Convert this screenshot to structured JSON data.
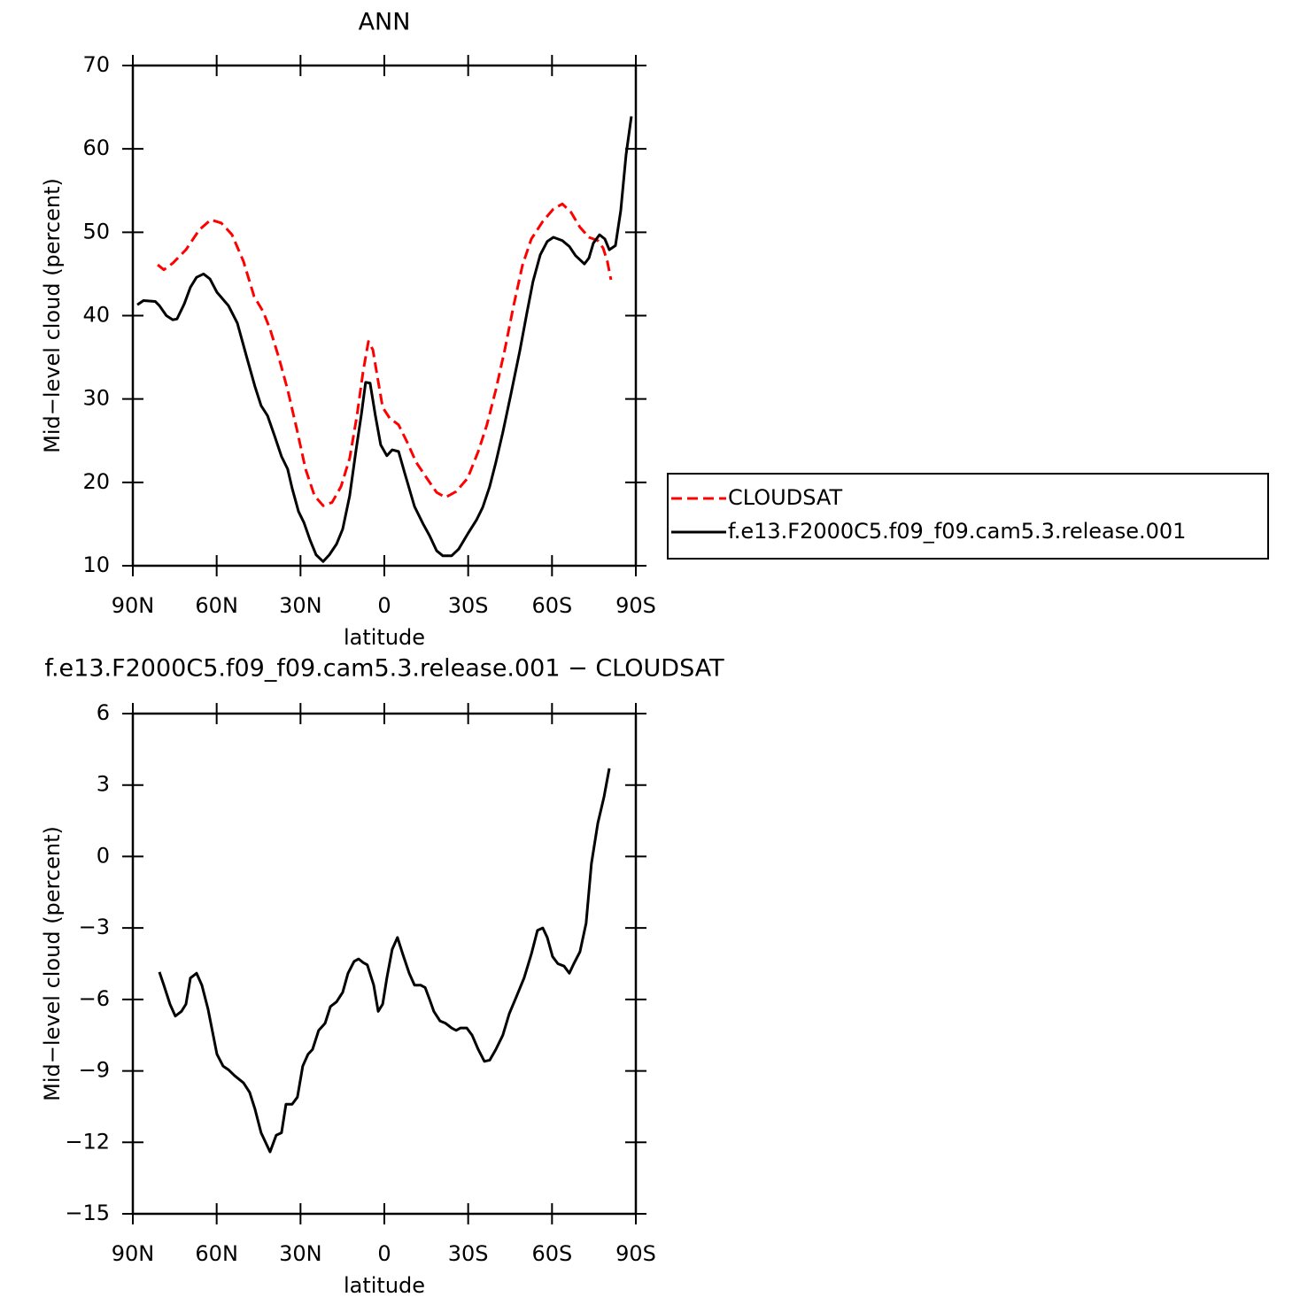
{
  "chart_data": [
    {
      "type": "line",
      "title": "ANN",
      "xlabel": "latitude",
      "ylabel": "Mid−level cloud (percent)",
      "xlim": [
        90,
        -90
      ],
      "xticks": [
        {
          "value": 90,
          "label": "90N"
        },
        {
          "value": 60,
          "label": "60N"
        },
        {
          "value": 30,
          "label": "30N"
        },
        0,
        {
          "value": -30,
          "label": "30S"
        },
        {
          "value": -60,
          "label": "60S"
        },
        {
          "value": -90,
          "label": "90S"
        }
      ],
      "ylim": [
        10,
        70
      ],
      "yticks": [
        10,
        20,
        30,
        40,
        50,
        60,
        70
      ],
      "legend": "outside-right",
      "series": [
        {
          "name": "CLOUDSAT",
          "color": "#ff0000",
          "line_style": "dashed",
          "x": [
            81.1,
            78.9,
            75.7,
            71,
            66.2,
            62.1,
            58.3,
            54.5,
            50.4,
            46.6,
            43.4,
            40.9,
            37.7,
            34.6,
            31.4,
            28.2,
            25,
            21.9,
            18.7,
            15.5,
            12.4,
            9.8,
            7.6,
            5.7,
            4.1,
            2.5,
            0.6,
            -1.9,
            -5.1,
            -8.2,
            -11.4,
            -15.2,
            -18.7,
            -21.9,
            -25.7,
            -29.8,
            -33.6,
            -36.7,
            -39.9,
            -43.1,
            -46.2,
            -49.4,
            -52.6,
            -56.7,
            -60.5,
            -63.7,
            -66.8,
            -70,
            -73.2,
            -76.4,
            -78.3,
            -79.8,
            -81.1
          ],
          "values": [
            46.1,
            45.5,
            46.3,
            47.9,
            50.3,
            51.5,
            51.1,
            49.7,
            46.5,
            42.3,
            40.5,
            38.4,
            34.9,
            31.1,
            26.5,
            21.6,
            18.4,
            17.2,
            17.6,
            19.5,
            22.9,
            28,
            33.3,
            36.9,
            35.9,
            32.7,
            29,
            27.7,
            26.9,
            24.8,
            22.4,
            20.5,
            18.8,
            18.2,
            18.9,
            20.5,
            23.7,
            26.9,
            31.1,
            35.9,
            41.1,
            46,
            49.2,
            51.3,
            52.8,
            53.4,
            52.4,
            50.6,
            49.4,
            49,
            48.1,
            46.5,
            44.3
          ]
        },
        {
          "name": "f.e13.F2000C5.f09_f09.cam5.3.release.001",
          "color": "#000000",
          "line_style": "solid",
          "x": [
            88.4,
            86.2,
            82,
            80.5,
            78,
            75.7,
            74.2,
            71.6,
            69.4,
            67.2,
            64.7,
            62.4,
            59.9,
            55.8,
            52.6,
            49.4,
            46.3,
            44.1,
            41.8,
            39.3,
            36.8,
            34.6,
            33,
            30.7,
            28.8,
            26.6,
            24.4,
            21.9,
            19.7,
            17.1,
            14.9,
            12.4,
            10.2,
            8.2,
            6.7,
            5.1,
            3.2,
            1.3,
            -0.9,
            -2.8,
            -5.1,
            -7.3,
            -10.8,
            -13.9,
            -16.2,
            -18.7,
            -20.9,
            -24.1,
            -26.6,
            -29.8,
            -33,
            -35.2,
            -37.7,
            -39.9,
            -42.4,
            -45.3,
            -48.5,
            -51,
            -53.2,
            -55.8,
            -58.3,
            -60.5,
            -63.7,
            -66.2,
            -68.4,
            -71.6,
            -73.2,
            -74.8,
            -77,
            -78.9,
            -80.5,
            -82.7,
            -84.6,
            -86.5,
            -88.4
          ],
          "values": [
            41.3,
            41.8,
            41.7,
            41.2,
            40,
            39.5,
            39.6,
            41.4,
            43.4,
            44.6,
            45,
            44.4,
            42.8,
            41.2,
            39.1,
            35.2,
            31.5,
            29.2,
            28,
            25.6,
            23.1,
            21.6,
            19.3,
            16.5,
            15.2,
            13.1,
            11.3,
            10.5,
            11.3,
            12.6,
            14.4,
            18.4,
            23.7,
            28.2,
            32,
            31.9,
            28,
            24.5,
            23.2,
            23.9,
            23.7,
            21.1,
            17.1,
            15,
            13.6,
            11.8,
            11.2,
            11.2,
            12,
            13.8,
            15.5,
            17,
            19.5,
            22.4,
            26,
            30.6,
            35.8,
            40.3,
            44.1,
            47.3,
            48.9,
            49.4,
            49,
            48.3,
            47.2,
            46.2,
            46.9,
            48.7,
            49.7,
            49.2,
            47.9,
            48.4,
            52.6,
            59.3,
            63.9
          ]
        }
      ]
    },
    {
      "type": "line",
      "title": "f.e13.F2000C5.f09_f09.cam5.3.release.001 − CLOUDSAT",
      "xlabel": "latitude",
      "ylabel": "Mid−level cloud (percent)",
      "xlim": [
        90,
        -90
      ],
      "xticks": [
        {
          "value": 90,
          "label": "90N"
        },
        {
          "value": 60,
          "label": "60N"
        },
        {
          "value": 30,
          "label": "30N"
        },
        0,
        {
          "value": -30,
          "label": "30S"
        },
        {
          "value": -60,
          "label": "60S"
        },
        {
          "value": -90,
          "label": "90S"
        }
      ],
      "ylim": [
        -15,
        6
      ],
      "yticks": [
        {
          "value": -15,
          "label": "−15"
        },
        {
          "value": -12,
          "label": "−12"
        },
        {
          "value": -9,
          "label": "−9"
        },
        {
          "value": -6,
          "label": "−6"
        },
        {
          "value": -3,
          "label": "−3"
        },
        0,
        3,
        6
      ],
      "series": [
        {
          "color": "#000000",
          "line_style": "solid",
          "x": [
            80.5,
            78.9,
            76.7,
            74.8,
            72.6,
            71,
            69.4,
            67.2,
            65.3,
            63.1,
            59.9,
            57.7,
            55.8,
            53.6,
            50.4,
            48.2,
            46.3,
            44.1,
            40.9,
            38.7,
            36.8,
            35.2,
            33,
            31.1,
            29.2,
            27.3,
            25.7,
            23.5,
            21.2,
            19.3,
            17.1,
            14.9,
            13,
            10.8,
            9.2,
            7.6,
            6.1,
            3.8,
            2.2,
            0.6,
            -0.9,
            -2.8,
            -4.7,
            -6.6,
            -8.9,
            -10.8,
            -13,
            -14.6,
            -16.2,
            -17.7,
            -19.9,
            -21.9,
            -24.1,
            -25.7,
            -27.2,
            -29.5,
            -31.4,
            -33.6,
            -35.8,
            -37.7,
            -39.9,
            -42.4,
            -44.7,
            -47.2,
            -50,
            -52.6,
            -54.8,
            -56.7,
            -58.3,
            -60.2,
            -62.1,
            -64.3,
            -66.2,
            -67.8,
            -70,
            -72.2,
            -74.1,
            -76.4,
            -78.6,
            -80.5
          ],
          "values": [
            -4.85,
            -5.4,
            -6.2,
            -6.7,
            -6.5,
            -6.2,
            -5.1,
            -4.9,
            -5.4,
            -6.4,
            -8.3,
            -8.8,
            -8.95,
            -9.2,
            -9.5,
            -9.9,
            -10.6,
            -11.6,
            -12.4,
            -11.7,
            -11.6,
            -10.4,
            -10.4,
            -10.1,
            -8.8,
            -8.3,
            -8.1,
            -7.3,
            -7,
            -6.3,
            -6.1,
            -5.7,
            -4.9,
            -4.4,
            -4.3,
            -4.45,
            -4.55,
            -5.4,
            -6.5,
            -6.2,
            -5.1,
            -3.9,
            -3.4,
            -4.1,
            -4.9,
            -5.4,
            -5.4,
            -5.5,
            -6,
            -6.5,
            -6.9,
            -7,
            -7.2,
            -7.3,
            -7.2,
            -7.2,
            -7.5,
            -8.1,
            -8.6,
            -8.55,
            -8.1,
            -7.5,
            -6.6,
            -5.9,
            -5.1,
            -4.1,
            -3.1,
            -3.0,
            -3.4,
            -4.2,
            -4.5,
            -4.6,
            -4.9,
            -4.5,
            -4.0,
            -2.8,
            -0.3,
            1.4,
            2.5,
            3.7
          ]
        }
      ]
    }
  ]
}
